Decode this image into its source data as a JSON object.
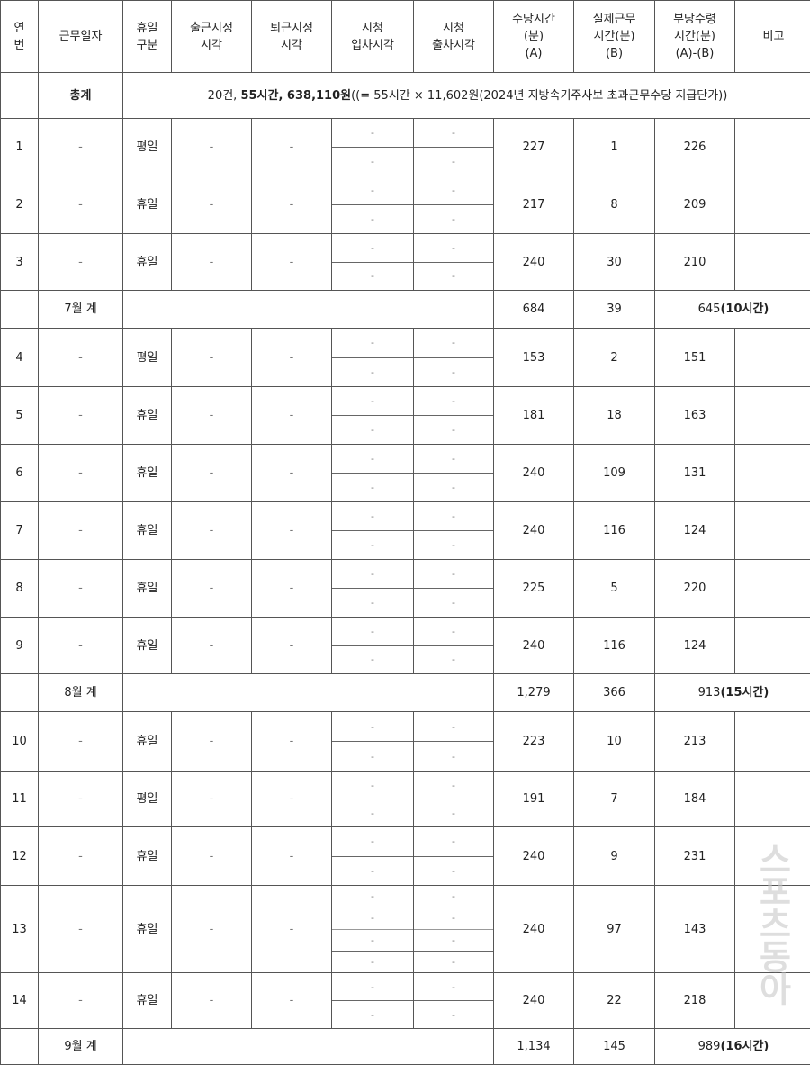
{
  "headers": [
    "연\n번",
    "근무일자",
    "휴일\n구분",
    "출근지정\n시각",
    "퇴근지정\n시각",
    "시청\n입차시각",
    "시청\n출차시각",
    "수당시간\n(분)\n(A)",
    "실제근무\n시간(분)\n(B)",
    "부당수령\n시간(분)\n(A)-(B)",
    "비고"
  ],
  "total": {
    "label": "총계",
    "text_pre": "20건, ",
    "text_bold": "55시간, 638,110원",
    "text_post": "((= 55시간 × 11,602원(2024년 지방속기주사보 초과근무수당 지급단가))"
  },
  "groups": [
    {
      "rows": [
        {
          "no": "1",
          "date": "-",
          "type": "평일",
          "in": "-",
          "out": "-",
          "entries": [
            [
              "-",
              "-"
            ],
            [
              "-",
              "-"
            ]
          ],
          "a": "227",
          "b": "1",
          "diff": "226"
        },
        {
          "no": "2",
          "date": "-",
          "type": "휴일",
          "in": "-",
          "out": "-",
          "entries": [
            [
              "-",
              "-"
            ],
            [
              "-",
              "-"
            ]
          ],
          "a": "217",
          "b": "8",
          "diff": "209"
        },
        {
          "no": "3",
          "date": "-",
          "type": "휴일",
          "in": "-",
          "out": "-",
          "entries": [
            [
              "-",
              "-"
            ],
            [
              "-",
              "-"
            ]
          ],
          "a": "240",
          "b": "30",
          "diff": "210"
        }
      ],
      "subtotal": {
        "label": "7월 계",
        "a": "684",
        "b": "39",
        "diff": "645",
        "diff_hours": "(10시간)"
      }
    },
    {
      "rows": [
        {
          "no": "4",
          "date": "-",
          "type": "평일",
          "in": "-",
          "out": "-",
          "entries": [
            [
              "-",
              "-"
            ],
            [
              "-",
              "-"
            ]
          ],
          "a": "153",
          "b": "2",
          "diff": "151"
        },
        {
          "no": "5",
          "date": "-",
          "type": "휴일",
          "in": "-",
          "out": "-",
          "entries": [
            [
              "-",
              "-"
            ],
            [
              "-",
              "-"
            ]
          ],
          "a": "181",
          "b": "18",
          "diff": "163"
        },
        {
          "no": "6",
          "date": "-",
          "type": "휴일",
          "in": "-",
          "out": "-",
          "entries": [
            [
              "-",
              "-"
            ],
            [
              "-",
              "-"
            ]
          ],
          "a": "240",
          "b": "109",
          "diff": "131"
        },
        {
          "no": "7",
          "date": "-",
          "type": "휴일",
          "in": "-",
          "out": "-",
          "entries": [
            [
              "-",
              "-"
            ],
            [
              "-",
              "-"
            ]
          ],
          "a": "240",
          "b": "116",
          "diff": "124"
        },
        {
          "no": "8",
          "date": "-",
          "type": "휴일",
          "in": "-",
          "out": "-",
          "entries": [
            [
              "-",
              "-"
            ],
            [
              "-",
              "-"
            ]
          ],
          "a": "225",
          "b": "5",
          "diff": "220"
        },
        {
          "no": "9",
          "date": "-",
          "type": "휴일",
          "in": "-",
          "out": "-",
          "entries": [
            [
              "-",
              "-"
            ],
            [
              "-",
              "-"
            ]
          ],
          "a": "240",
          "b": "116",
          "diff": "124"
        }
      ],
      "subtotal": {
        "label": "8월 계",
        "a": "1,279",
        "b": "366",
        "diff": "913",
        "diff_hours": "(15시간)"
      }
    },
    {
      "rows": [
        {
          "no": "10",
          "date": "-",
          "type": "휴일",
          "in": "-",
          "out": "-",
          "entries": [
            [
              "-",
              "-"
            ],
            [
              "-",
              "-"
            ]
          ],
          "a": "223",
          "b": "10",
          "diff": "213"
        },
        {
          "no": "11",
          "date": "-",
          "type": "평일",
          "in": "-",
          "out": "-",
          "entries": [
            [
              "-",
              "-"
            ],
            [
              "-",
              "-"
            ]
          ],
          "a": "191",
          "b": "7",
          "diff": "184"
        },
        {
          "no": "12",
          "date": "-",
          "type": "휴일",
          "in": "-",
          "out": "-",
          "entries": [
            [
              "-",
              "-"
            ],
            [
              "-",
              "-"
            ]
          ],
          "a": "240",
          "b": "9",
          "diff": "231"
        },
        {
          "no": "13",
          "date": "-",
          "type": "휴일",
          "in": "-",
          "out": "-",
          "entries": [
            [
              "-",
              "-"
            ],
            [
              "-",
              "-"
            ],
            [
              "-",
              "-"
            ],
            [
              "-",
              "-"
            ]
          ],
          "a": "240",
          "b": "97",
          "diff": "143"
        },
        {
          "no": "14",
          "date": "-",
          "type": "휴일",
          "in": "-",
          "out": "-",
          "entries": [
            [
              "-",
              "-"
            ],
            [
              "-",
              "-"
            ]
          ],
          "a": "240",
          "b": "22",
          "diff": "218"
        }
      ],
      "subtotal": {
        "label": "9월 계",
        "a": "1,134",
        "b": "145",
        "diff": "989",
        "diff_hours": "(16시간)"
      }
    }
  ],
  "watermark": "스포츠동아"
}
